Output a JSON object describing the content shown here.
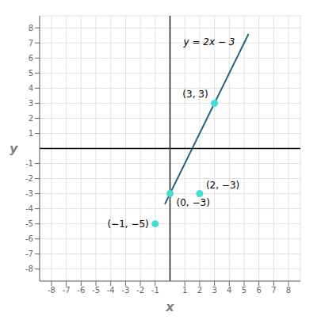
{
  "chart_data": {
    "type": "scatter",
    "x_label": "x",
    "y_label": "y",
    "xlim": [
      -8.8,
      8.8
    ],
    "ylim": [
      -8.8,
      8.8
    ],
    "xticks": [
      -8,
      -7,
      -6,
      -5,
      -4,
      -3,
      -2,
      -1,
      1,
      2,
      3,
      4,
      5,
      6,
      7,
      8
    ],
    "yticks": [
      -8,
      -7,
      -6,
      -5,
      -4,
      -3,
      -2,
      -1,
      1,
      2,
      3,
      4,
      5,
      6,
      7,
      8
    ],
    "grid": true,
    "series": [
      {
        "type": "line",
        "color": "#1f5f7a",
        "x": [
          -0.35,
          5.3
        ],
        "values": [
          -3.7,
          7.6
        ]
      },
      {
        "type": "scatter",
        "color": "#40e0d0",
        "x": [
          -1,
          0,
          3,
          2
        ],
        "values": [
          -5,
          -3,
          3,
          -3
        ]
      }
    ],
    "annotations": [
      {
        "text": "y = 2x − 3",
        "x": 0.7,
        "y": 7.5
      },
      {
        "text": "(−1, −5)",
        "x": -1,
        "y": -5
      },
      {
        "text": "(0, −3)",
        "x": 0,
        "y": -3
      },
      {
        "text": "(3, 3)",
        "x": 3,
        "y": 3
      },
      {
        "text": "(2, −3)",
        "x": 2,
        "y": -3
      }
    ]
  }
}
